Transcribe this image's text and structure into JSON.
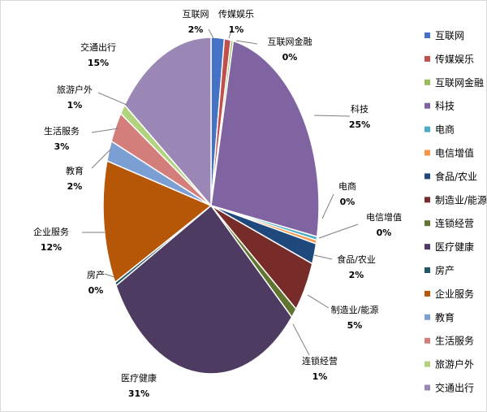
{
  "chart_data": {
    "type": "pie",
    "categories": [
      "互联网",
      "传媒娱乐",
      "互联网金融",
      "科技",
      "电商",
      "电信增值",
      "食品/农业",
      "制造业/能源",
      "连锁经营",
      "医疗健康",
      "房产",
      "企业服务",
      "教育",
      "生活服务",
      "旅游户外",
      "交通出行"
    ],
    "values": [
      2,
      1,
      0,
      25,
      0,
      0,
      2,
      5,
      1,
      31,
      0,
      12,
      2,
      3,
      1,
      15
    ],
    "value_labels": [
      "2%",
      "1%",
      "0%",
      "25%",
      "0%",
      "0%",
      "2%",
      "5%",
      "1%",
      "31%",
      "0%",
      "12%",
      "2%",
      "3%",
      "1%",
      "15%"
    ],
    "colors": [
      "#4472C4",
      "#C0504D",
      "#9BBB59",
      "#8064A2",
      "#4BACC6",
      "#F79646",
      "#1F497D",
      "#772C2A",
      "#5F7530",
      "#4D3B62",
      "#215968",
      "#B65708",
      "#7C9FD3",
      "#D47E7C",
      "#B1D37D",
      "#9A87B6"
    ],
    "legend_position": "right",
    "title": ""
  }
}
